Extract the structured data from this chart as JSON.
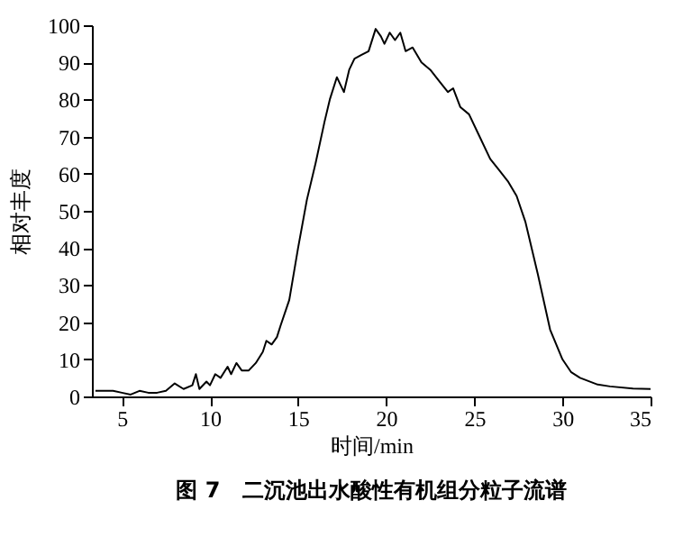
{
  "chart_data": {
    "type": "line",
    "title": "图 7　二沉池出水酸性有机组分粒子流谱",
    "xlabel": "时间/min",
    "ylabel": "相对丰度",
    "xlim": [
      3.3,
      35
    ],
    "xticks": [
      5,
      10,
      15,
      20,
      25,
      30,
      35
    ],
    "ylim": [
      0,
      100
    ],
    "yticks": [
      0,
      10,
      20,
      30,
      40,
      50,
      60,
      70,
      80,
      90,
      100
    ],
    "grid": false,
    "marker": "none",
    "line_style": "solid",
    "x": [
      3.5,
      4.5,
      5,
      5.5,
      6,
      6.5,
      7,
      7.5,
      8,
      8.5,
      9,
      9.2,
      9.4,
      9.8,
      10,
      10.3,
      10.6,
      11,
      11.2,
      11.5,
      11.8,
      12.2,
      12.6,
      13,
      13.2,
      13.5,
      13.8,
      14,
      14.5,
      15,
      15.5,
      16,
      16.5,
      16.8,
      17.2,
      17.6,
      17.9,
      18.2,
      18.6,
      19,
      19.4,
      19.7,
      19.9,
      20.2,
      20.5,
      20.8,
      21.1,
      21.5,
      22,
      22.5,
      23,
      23.5,
      23.8,
      24.2,
      24.7,
      25.2,
      25.9,
      26.4,
      26.9,
      27.4,
      27.9,
      28.6,
      29.3,
      30,
      30.5,
      31,
      32,
      32.7,
      34,
      35
    ],
    "series": [
      {
        "color": "#000000",
        "values": [
          1.5,
          1.5,
          1,
          0.5,
          1.5,
          1,
          1,
          1.5,
          3.5,
          2,
          3,
          6,
          2,
          4,
          3,
          6,
          5,
          8,
          6,
          9,
          7,
          7,
          9,
          12,
          15,
          14,
          16,
          19,
          26,
          40,
          53,
          63,
          74,
          80,
          86,
          82,
          88,
          91,
          92,
          93,
          99,
          97,
          95,
          98,
          96,
          98,
          93,
          94,
          90,
          88,
          85,
          82,
          83,
          78,
          76,
          71,
          64,
          61,
          58,
          54,
          47,
          33,
          18,
          10,
          6.5,
          5,
          3.2,
          2.7,
          2.1,
          2
        ]
      }
    ]
  }
}
